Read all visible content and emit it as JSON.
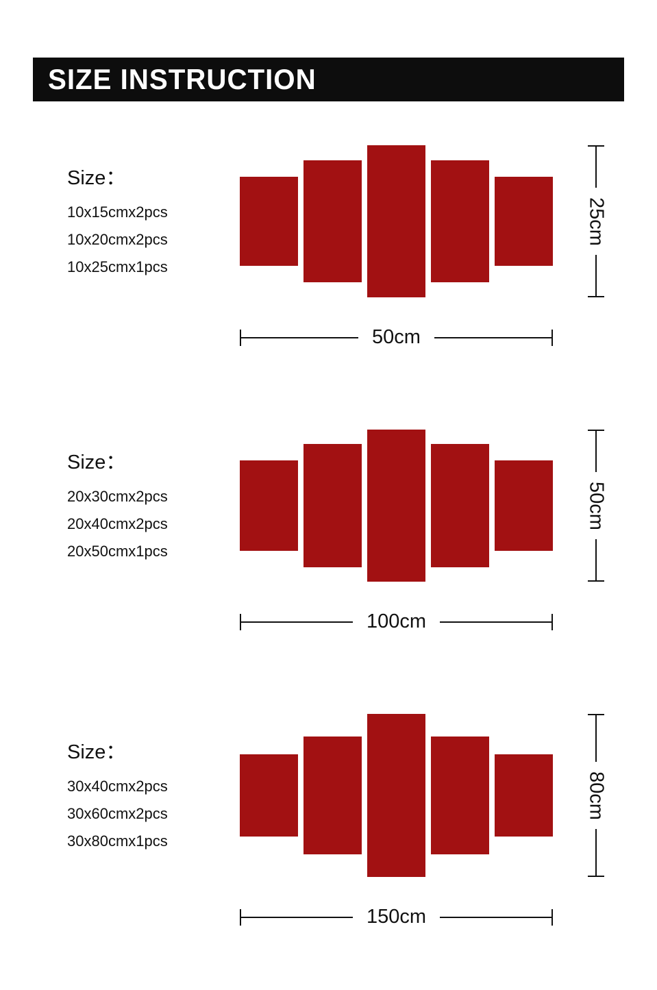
{
  "header": {
    "title": "SIZE INSTRUCTION"
  },
  "colors": {
    "panel_red": "#a21112",
    "header_bg": "#0d0d0d",
    "line_black": "#111111"
  },
  "sections": [
    {
      "size_label": "Size：",
      "sizes": [
        "10x15cmx2pcs",
        "10x20cmx2pcs",
        "10x25cmx1pcs"
      ],
      "width_label": "50cm",
      "height_label": "25cm",
      "panel_count": 5
    },
    {
      "size_label": "Size：",
      "sizes": [
        "20x30cmx2pcs",
        "20x40cmx2pcs",
        "20x50cmx1pcs"
      ],
      "width_label": "100cm",
      "height_label": "50cm",
      "panel_count": 5
    },
    {
      "size_label": "Size：",
      "sizes": [
        "30x40cmx2pcs",
        "30x60cmx2pcs",
        "30x80cmx1pcs"
      ],
      "width_label": "150cm",
      "height_label": "80cm",
      "panel_count": 5
    }
  ]
}
